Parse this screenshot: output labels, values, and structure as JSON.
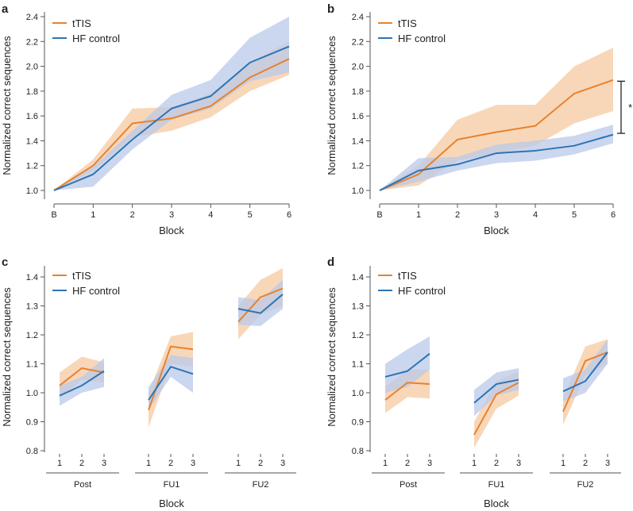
{
  "figure": {
    "series_names": [
      "tTIS",
      "HF control"
    ],
    "colors": {
      "tTIS": "#e8822d",
      "HF control": "#2d74b5",
      "tTIS_band": "#f5c9a2",
      "HF_band": "#b9c9ea",
      "axis": "#555555"
    }
  },
  "chart_data": [
    {
      "panel": "a",
      "type": "line",
      "categories": [
        "B",
        "1",
        "2",
        "3",
        "4",
        "5",
        "6"
      ],
      "xlabel": "Block",
      "ylabel": "Normalized correct sequences",
      "ylim": [
        1.0,
        2.4
      ],
      "yticks": [
        "1.0",
        "1.2",
        "1.4",
        "1.6",
        "1.8",
        "2.0",
        "2.2",
        "2.4"
      ],
      "legend": [
        "tTIS",
        "HF control"
      ],
      "series": [
        {
          "name": "tTIS",
          "values": [
            1.0,
            1.2,
            1.54,
            1.58,
            1.68,
            1.91,
            2.06
          ],
          "lower": [
            1.0,
            1.16,
            1.43,
            1.48,
            1.59,
            1.8,
            1.93
          ],
          "upper": [
            1.0,
            1.25,
            1.66,
            1.67,
            1.78,
            2.03,
            2.2
          ]
        },
        {
          "name": "HF control",
          "values": [
            1.0,
            1.13,
            1.41,
            1.66,
            1.76,
            2.03,
            2.16
          ],
          "lower": [
            1.0,
            1.03,
            1.33,
            1.57,
            1.66,
            1.88,
            1.95
          ],
          "upper": [
            1.0,
            1.19,
            1.48,
            1.77,
            1.89,
            2.23,
            2.4
          ]
        }
      ]
    },
    {
      "panel": "b",
      "type": "line",
      "categories": [
        "B",
        "1",
        "2",
        "3",
        "4",
        "5",
        "6"
      ],
      "xlabel": "Block",
      "ylabel": "Normalized correct sequences",
      "ylim": [
        1.0,
        2.4
      ],
      "yticks": [
        "1.0",
        "1.2",
        "1.4",
        "1.6",
        "1.8",
        "2.0",
        "2.2",
        "2.4"
      ],
      "legend": [
        "tTIS",
        "HF control"
      ],
      "significance_label": "*",
      "significance_range": [
        1.46,
        1.88
      ],
      "series": [
        {
          "name": "tTIS",
          "values": [
            1.0,
            1.13,
            1.41,
            1.47,
            1.52,
            1.78,
            1.89
          ],
          "lower": [
            1.0,
            1.04,
            1.24,
            1.3,
            1.36,
            1.54,
            1.64
          ],
          "upper": [
            1.0,
            1.2,
            1.57,
            1.69,
            1.69,
            2.0,
            2.15
          ]
        },
        {
          "name": "HF control",
          "values": [
            1.0,
            1.16,
            1.21,
            1.3,
            1.32,
            1.36,
            1.45
          ],
          "lower": [
            1.0,
            1.07,
            1.16,
            1.22,
            1.24,
            1.29,
            1.38
          ],
          "upper": [
            1.0,
            1.26,
            1.27,
            1.37,
            1.4,
            1.44,
            1.53
          ]
        }
      ]
    },
    {
      "panel": "c",
      "type": "line",
      "xlabel": "Block",
      "ylabel": "Normalized correct sequences",
      "ylim": [
        0.8,
        1.4
      ],
      "yticks": [
        "0.8",
        "0.9",
        "1.0",
        "1.1",
        "1.2",
        "1.3",
        "1.4"
      ],
      "legend": [
        "tTIS",
        "HF control"
      ],
      "groups": [
        {
          "label": "Post",
          "x": [
            "1",
            "2",
            "3"
          ],
          "series": [
            {
              "name": "tTIS",
              "values": [
                1.025,
                1.085,
                1.07
              ],
              "lower": [
                0.98,
                1.045,
                1.035
              ],
              "upper": [
                1.07,
                1.125,
                1.105
              ]
            },
            {
              "name": "HF control",
              "values": [
                0.99,
                1.025,
                1.075
              ],
              "lower": [
                0.955,
                1.0,
                1.02
              ],
              "upper": [
                1.025,
                1.055,
                1.12
              ]
            }
          ]
        },
        {
          "label": "FU1",
          "x": [
            "1",
            "2",
            "3"
          ],
          "series": [
            {
              "name": "tTIS",
              "values": [
                0.94,
                1.16,
                1.15
              ],
              "lower": [
                0.88,
                1.1,
                1.09
              ],
              "upper": [
                1.0,
                1.195,
                1.21
              ]
            },
            {
              "name": "HF control",
              "values": [
                0.975,
                1.09,
                1.065
              ],
              "lower": [
                0.94,
                1.055,
                1.0
              ],
              "upper": [
                1.02,
                1.13,
                1.12
              ]
            }
          ]
        },
        {
          "label": "FU2",
          "x": [
            "1",
            "2",
            "3"
          ],
          "series": [
            {
              "name": "tTIS",
              "values": [
                1.245,
                1.33,
                1.36
              ],
              "lower": [
                1.185,
                1.27,
                1.3
              ],
              "upper": [
                1.3,
                1.39,
                1.43
              ]
            },
            {
              "name": "HF control",
              "values": [
                1.29,
                1.275,
                1.34
              ],
              "lower": [
                1.235,
                1.23,
                1.29
              ],
              "upper": [
                1.33,
                1.32,
                1.39
              ]
            }
          ]
        }
      ]
    },
    {
      "panel": "d",
      "type": "line",
      "xlabel": "Block",
      "ylabel": "Normalized correct sequences",
      "ylim": [
        0.8,
        1.4
      ],
      "yticks": [
        "0.8",
        "0.9",
        "1.0",
        "1.1",
        "1.2",
        "1.3",
        "1.4"
      ],
      "legend": [
        "tTIS",
        "HF control"
      ],
      "groups": [
        {
          "label": "Post",
          "x": [
            "1",
            "2",
            "3"
          ],
          "series": [
            {
              "name": "tTIS",
              "values": [
                0.975,
                1.035,
                1.03
              ],
              "lower": [
                0.93,
                0.985,
                0.98
              ],
              "upper": [
                1.02,
                1.08,
                1.08
              ]
            },
            {
              "name": "HF control",
              "values": [
                1.055,
                1.075,
                1.135
              ],
              "lower": [
                1.0,
                1.02,
                1.08
              ],
              "upper": [
                1.1,
                1.15,
                1.195
              ]
            }
          ]
        },
        {
          "label": "FU1",
          "x": [
            "1",
            "2",
            "3"
          ],
          "series": [
            {
              "name": "tTIS",
              "values": [
                0.855,
                0.995,
                1.035
              ],
              "lower": [
                0.81,
                0.945,
                0.99
              ],
              "upper": [
                0.9,
                1.04,
                1.075
              ]
            },
            {
              "name": "HF control",
              "values": [
                0.965,
                1.03,
                1.045
              ],
              "lower": [
                0.92,
                0.99,
                1.01
              ],
              "upper": [
                1.01,
                1.07,
                1.085
              ]
            }
          ]
        },
        {
          "label": "FU2",
          "x": [
            "1",
            "2",
            "3"
          ],
          "series": [
            {
              "name": "tTIS",
              "values": [
                0.935,
                1.11,
                1.14
              ],
              "lower": [
                0.89,
                1.06,
                1.1
              ],
              "upper": [
                0.98,
                1.16,
                1.185
              ]
            },
            {
              "name": "HF control",
              "values": [
                1.005,
                1.04,
                1.14
              ],
              "lower": [
                0.97,
                1.0,
                1.1
              ],
              "upper": [
                1.05,
                1.08,
                1.185
              ]
            }
          ]
        }
      ]
    }
  ]
}
